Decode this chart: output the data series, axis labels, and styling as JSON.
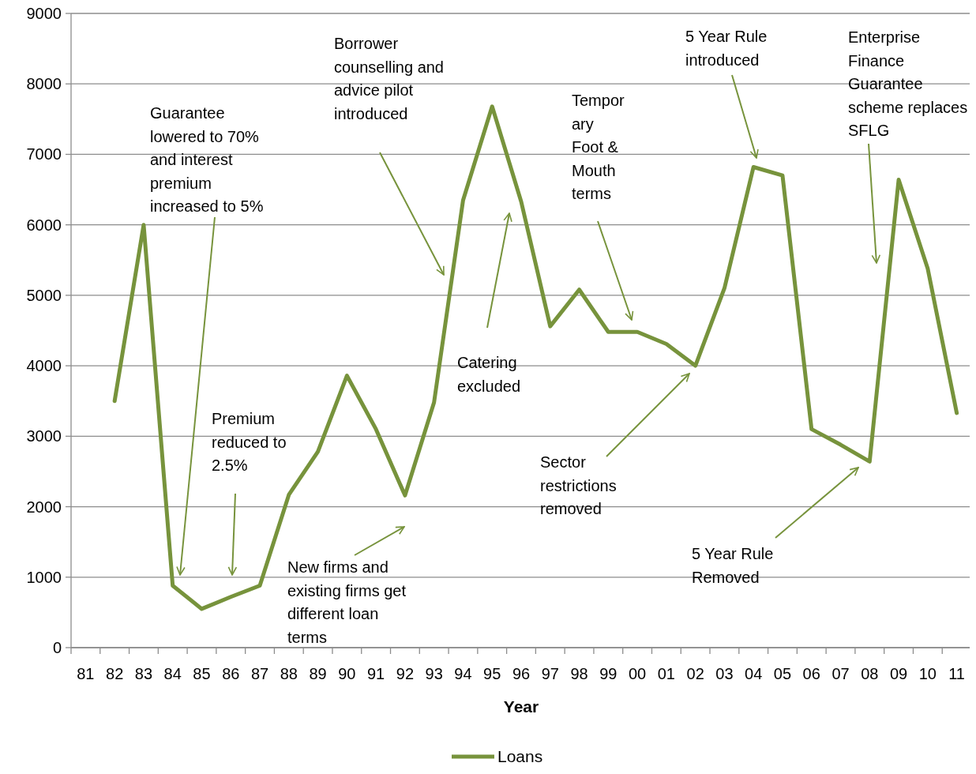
{
  "chart_data": {
    "type": "line",
    "xlabel": "Year",
    "categories": [
      "81",
      "82",
      "83",
      "84",
      "85",
      "86",
      "87",
      "88",
      "89",
      "90",
      "91",
      "92",
      "93",
      "94",
      "95",
      "96",
      "97",
      "98",
      "99",
      "00",
      "01",
      "02",
      "03",
      "04",
      "05",
      "06",
      "07",
      "08",
      "09",
      "10",
      "11"
    ],
    "series": [
      {
        "name": "Loans",
        "color": "#77933c",
        "values": [
          null,
          3500,
          6000,
          880,
          550,
          720,
          880,
          2170,
          2780,
          3860,
          3100,
          2160,
          3480,
          6350,
          7680,
          6330,
          4560,
          5080,
          4480,
          4480,
          4310,
          4000,
          5100,
          6820,
          6700,
          3100,
          2880,
          2640,
          6640,
          5380,
          3330
        ]
      }
    ],
    "ylim": [
      0,
      9000
    ],
    "yticks": [
      0,
      1000,
      2000,
      3000,
      4000,
      5000,
      6000,
      7000,
      8000,
      9000
    ],
    "grid": "y",
    "legend": "bottom",
    "marker": "none",
    "line_style": "solid",
    "annotations": [
      "Guarantee\nlowered to 70%\nand interest\npremium\nincreased to 5%",
      "Premium\nreduced to\n2.5%",
      "New firms and\nexisting firms get\ndifferent loan\nterms",
      "Borrower\ncounselling and\nadvice pilot\nintroduced",
      "Catering\nexcluded",
      "Tempor\nary\nFoot &\nMouth\nterms",
      "Sector\nrestrictions\nremoved",
      "5 Year Rule\nintroduced",
      "Enterprise\nFinance\nGuarantee\nscheme replaces\nSFLG",
      "5 Year Rule\nRemoved"
    ]
  }
}
